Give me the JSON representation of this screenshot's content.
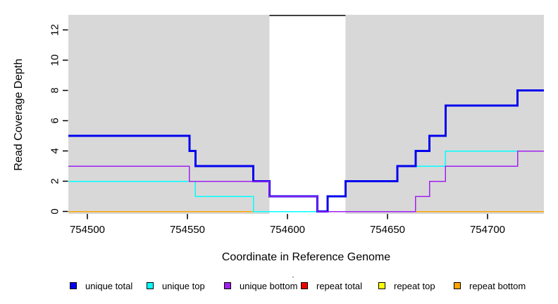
{
  "chart_data": {
    "type": "line",
    "subtype": "step",
    "title": "",
    "xlabel": "Coordinate in Reference Genome",
    "ylabel": "Read Coverage Depth",
    "x_ticks": [
      754500,
      754550,
      754600,
      754650,
      754700
    ],
    "y_ticks": [
      0,
      2,
      4,
      6,
      8,
      10,
      12
    ],
    "xlim": [
      754490.5,
      754728.5
    ],
    "ylim": [
      0,
      13
    ],
    "grid": false,
    "legend_position": "bottom",
    "plot_background_color": "#d8d8d8",
    "page_background_color": "#ffffff",
    "highlight_region": {
      "x_start": 754591,
      "x_end": 754629,
      "color": "#ffffff"
    },
    "gap_line": {
      "y": 13,
      "x_start": 754591,
      "x_end": 754629,
      "color": "#000000"
    },
    "stray_mark": "·",
    "series": [
      {
        "name": "unique total",
        "color": "#0202ee",
        "line_width": 3,
        "steps": [
          [
            754490.5,
            5
          ],
          [
            754551,
            4
          ],
          [
            754554,
            3
          ],
          [
            754583,
            2
          ],
          [
            754591,
            1
          ],
          [
            754615,
            0
          ],
          [
            754620,
            1
          ],
          [
            754629,
            2
          ],
          [
            754655,
            3
          ],
          [
            754664,
            4
          ],
          [
            754671,
            5
          ],
          [
            754679,
            7
          ],
          [
            754715,
            8
          ]
        ],
        "x_end": 754728.5
      },
      {
        "name": "unique top",
        "color": "#00ffff",
        "line_width": 1.5,
        "steps": [
          [
            754490.5,
            2
          ],
          [
            754554,
            1
          ],
          [
            754583,
            0
          ],
          [
            754620,
            1
          ],
          [
            754629,
            2
          ],
          [
            754655,
            3
          ],
          [
            754679,
            4
          ]
        ],
        "x_end": 754728.5
      },
      {
        "name": "unique bottom",
        "color": "#a020f0",
        "line_width": 1.5,
        "steps": [
          [
            754490.5,
            3
          ],
          [
            754551,
            2
          ],
          [
            754591,
            1
          ],
          [
            754615,
            0
          ],
          [
            754664,
            1
          ],
          [
            754671,
            2
          ],
          [
            754679,
            3
          ],
          [
            754715,
            4
          ]
        ],
        "x_end": 754728.5
      },
      {
        "name": "repeat total",
        "color": "#ee0000",
        "line_width": 1.5,
        "steps": [
          [
            754490.5,
            0
          ]
        ],
        "x_end": 754728.5
      },
      {
        "name": "repeat top",
        "color": "#ffff00",
        "line_width": 1.5,
        "steps": [
          [
            754490.5,
            0
          ]
        ],
        "x_end": 754728.5
      },
      {
        "name": "repeat bottom",
        "color": "#ffa500",
        "line_width": 1.5,
        "steps": [
          [
            754490.5,
            0
          ]
        ],
        "x_end": 754728.5
      }
    ],
    "draw_order": [
      "repeat top",
      "repeat total",
      "repeat bottom",
      "unique top",
      "unique total",
      "unique bottom"
    ],
    "legend": [
      {
        "label": "unique total",
        "color": "#0202ee"
      },
      {
        "label": "unique top",
        "color": "#00ffff"
      },
      {
        "label": "unique bottom",
        "color": "#a020f0"
      },
      {
        "label": "repeat total",
        "color": "#ee0000"
      },
      {
        "label": "repeat top",
        "color": "#ffff00"
      },
      {
        "label": "repeat bottom",
        "color": "#ffa500"
      }
    ]
  }
}
